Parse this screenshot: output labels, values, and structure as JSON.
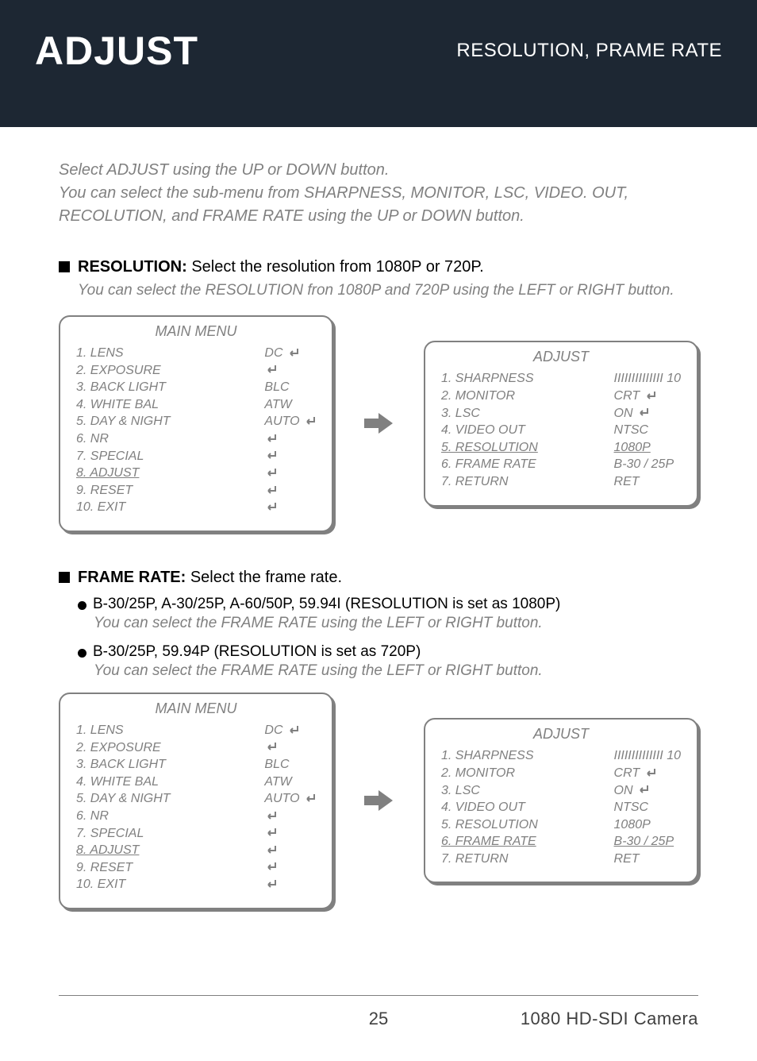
{
  "banner": {
    "title": "ADJUST",
    "subtitle": "RESOLUTION, PRAME RATE"
  },
  "intro": "Select  ADJUST  using the UP or DOWN button.\nYou can select the sub-menu from SHARPNESS, MONITOR, LSC, VIDEO. OUT, RECOLUTION, and FRAME RATE using the UP or DOWN button.",
  "resolution": {
    "title": "RESOLUTION:",
    "desc": " Select the resolution from 1080P or 720P.",
    "sub": "You can select the RESOLUTION fron 1080P and 720P using the LEFT or RIGHT button."
  },
  "framerate": {
    "title": "FRAME RATE:",
    "desc": " Select the frame rate.",
    "bullets": [
      {
        "text": "B-30/25P, A-30/25P, A-60/50P, 59.94I (RESOLUTION is set as 1080P)",
        "sub": "You can select the FRAME RATE using the LEFT or RIGHT button."
      },
      {
        "text": "B-30/25P, 59.94P (RESOLUTION is set as 720P)",
        "sub": "You can select the FRAME RATE using the LEFT or RIGHT button."
      }
    ]
  },
  "main_menu": {
    "title": "MAIN MENU",
    "items": [
      {
        "label": "1. LENS",
        "value": "DC",
        "icon": "enter"
      },
      {
        "label": "2. EXPOSURE",
        "value": "",
        "icon": "enter"
      },
      {
        "label": "3. BACK LIGHT",
        "value": "BLC",
        "icon": ""
      },
      {
        "label": "4. WHITE BAL",
        "value": "ATW",
        "icon": ""
      },
      {
        "label": "5. DAY & NIGHT",
        "value": "AUTO",
        "icon": "enter"
      },
      {
        "label": "6. NR",
        "value": "",
        "icon": "enter"
      },
      {
        "label": "7. SPECIAL",
        "value": "",
        "icon": "enter"
      },
      {
        "label": "8. ADJUST",
        "value": "",
        "icon": "enter",
        "highlight": true
      },
      {
        "label": "9. RESET",
        "value": "",
        "icon": "enter"
      },
      {
        "label": "10. EXIT",
        "value": "",
        "icon": "enter"
      }
    ]
  },
  "adjust_menu_1": {
    "title": "ADJUST",
    "items": [
      {
        "label": "1. SHARPNESS",
        "value": "IIIIIIIIIIIIII 10"
      },
      {
        "label": "2. MONITOR",
        "value": "CRT",
        "icon": "enter"
      },
      {
        "label": "3. LSC",
        "value": "ON",
        "icon": "enter"
      },
      {
        "label": "4. VIDEO OUT",
        "value": "NTSC"
      },
      {
        "label": "5. RESOLUTION",
        "value": "1080P",
        "highlight": true
      },
      {
        "label": "6. FRAME RATE",
        "value": "B-30 / 25P"
      },
      {
        "label": "7. RETURN",
        "value": "RET"
      }
    ]
  },
  "adjust_menu_2": {
    "title": "ADJUST",
    "items": [
      {
        "label": "1. SHARPNESS",
        "value": "IIIIIIIIIIIIII 10"
      },
      {
        "label": "2. MONITOR",
        "value": "CRT",
        "icon": "enter"
      },
      {
        "label": "3. LSC",
        "value": "ON",
        "icon": "enter"
      },
      {
        "label": "4. VIDEO OUT",
        "value": "NTSC"
      },
      {
        "label": "5. RESOLUTION",
        "value": "1080P"
      },
      {
        "label": "6. FRAME RATE",
        "value": "B-30 / 25P",
        "highlight": true
      },
      {
        "label": "7. RETURN",
        "value": "RET"
      }
    ]
  },
  "footer": {
    "page": "25",
    "product": "1080 HD-SDI Camera"
  },
  "colors": {
    "banner_bg": "#1d2733",
    "gray": "#808080"
  }
}
